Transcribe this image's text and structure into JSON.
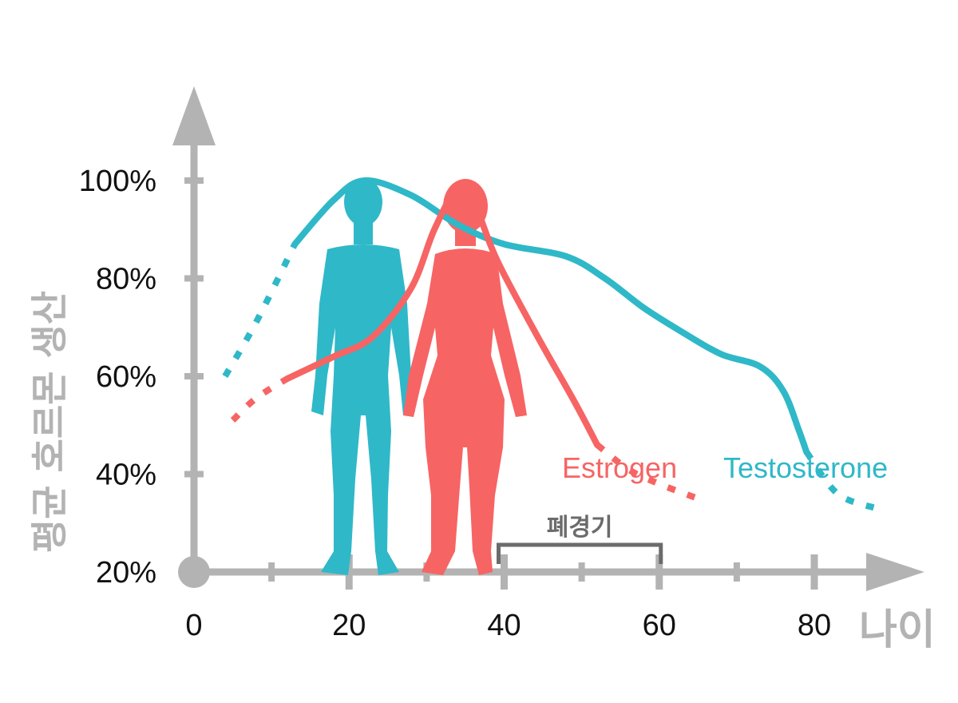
{
  "chart_data": {
    "type": "line",
    "title": "",
    "xlabel": "나이",
    "ylabel": "평균 호르몬 생산",
    "xlim": [
      0,
      95
    ],
    "ylim": [
      20,
      100
    ],
    "x_ticks": [
      "0",
      "20",
      "40",
      "60",
      "80"
    ],
    "y_ticks": [
      "20%",
      "40%",
      "60%",
      "80%",
      "100%"
    ],
    "colors": {
      "testosterone": "#2fb8c8",
      "estrogen": "#f76464",
      "axis": "#b3b3b3"
    },
    "series": [
      {
        "name": "Testosterone",
        "color": "#2fb8c8",
        "points": [
          [
            4,
            60
          ],
          [
            8,
            71
          ],
          [
            13,
            87
          ],
          [
            18,
            96
          ],
          [
            22,
            100
          ],
          [
            28,
            97
          ],
          [
            34,
            91
          ],
          [
            40,
            87
          ],
          [
            48,
            84.5
          ],
          [
            53,
            80
          ],
          [
            58,
            74
          ],
          [
            63,
            69
          ],
          [
            68,
            64.5
          ],
          [
            73,
            62
          ],
          [
            76,
            57
          ],
          [
            78,
            49
          ],
          [
            79,
            44.5
          ],
          [
            83,
            36
          ],
          [
            88,
            33
          ]
        ],
        "dotted_until_x": 13,
        "dotted_after_x": 79
      },
      {
        "name": "Estrogen",
        "color": "#f76464",
        "points": [
          [
            5,
            51
          ],
          [
            8,
            55.5
          ],
          [
            12,
            59.5
          ],
          [
            18,
            64
          ],
          [
            23,
            68
          ],
          [
            28,
            78
          ],
          [
            31,
            90
          ],
          [
            34,
            98.5
          ],
          [
            36,
            96
          ],
          [
            39,
            84
          ],
          [
            44,
            69
          ],
          [
            49,
            55
          ],
          [
            52,
            46
          ],
          [
            56,
            41
          ],
          [
            60,
            38
          ],
          [
            65,
            35
          ]
        ],
        "dotted_until_x": 12,
        "dotted_after_x": 52
      }
    ],
    "annotations": [
      {
        "label": "폐경기",
        "x_start": 40,
        "x_end": 60
      }
    ],
    "figures": [
      "male-silhouette",
      "female-silhouette"
    ]
  }
}
